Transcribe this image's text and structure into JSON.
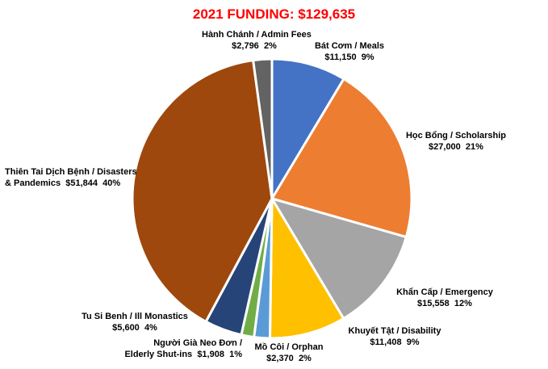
{
  "chart_data": {
    "type": "pie",
    "title": "2021 FUNDING: $129,635",
    "slices": [
      {
        "name": "Bát Cơm / Meals",
        "value": 11150,
        "value_label": "$11,150",
        "pct": "9%",
        "color": "#4472c4"
      },
      {
        "name": "Học Bổng / Scholarship",
        "value": 27000,
        "value_label": "$27,000",
        "pct": "21%",
        "color": "#ed7d31"
      },
      {
        "name": "Khẩn Cấp / Emergency",
        "value": 15558,
        "value_label": "$15,558",
        "pct": "12%",
        "color": "#a5a5a5"
      },
      {
        "name": "Khuyết Tật / Disability",
        "value": 11408,
        "value_label": "$11,408",
        "pct": "9%",
        "color": "#ffc000"
      },
      {
        "name": "Mồ Côi / Orphan",
        "value": 2370,
        "value_label": "$2,370",
        "pct": "2%",
        "color": "#5b9bd5"
      },
      {
        "name": "Người Già Neo Đơn / Elderly Shut-ins",
        "name_line1": "Người Già Neo Đơn /",
        "name_line2": "Elderly Shut-ins",
        "value": 1908,
        "value_label": "$1,908",
        "pct": "1%",
        "color": "#70ad47"
      },
      {
        "name": "Tu Si Benh / Ill Monastics",
        "value": 5600,
        "value_label": "$5,600",
        "pct": "4%",
        "color": "#264478"
      },
      {
        "name": "Thiên Tai Dịch Bệnh / Disasters & Pandemics",
        "name_line1": "Thiên Tai Dịch Bệnh / Disasters",
        "name_line2": "& Pandemics",
        "value": 51844,
        "value_label": "$51,844",
        "pct": "40%",
        "color": "#9e480e"
      },
      {
        "name": "Hành Chánh / Admin Fees",
        "value": 2796,
        "value_label": "$2,796",
        "pct": "2%",
        "color": "#636363"
      }
    ]
  }
}
